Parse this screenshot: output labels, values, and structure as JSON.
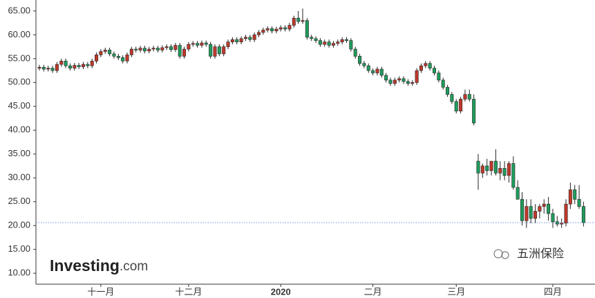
{
  "chart_data": {
    "type": "candlestick",
    "categories": [
      null,
      null,
      null,
      null,
      null,
      null,
      null,
      null,
      null,
      null,
      null,
      null,
      null,
      null,
      "十一月",
      null,
      null,
      null,
      null,
      null,
      null,
      null,
      null,
      null,
      null,
      null,
      null,
      null,
      null,
      null,
      null,
      null,
      null,
      null,
      "十二月",
      null,
      null,
      null,
      null,
      null,
      null,
      null,
      null,
      null,
      null,
      null,
      null,
      null,
      null,
      null,
      null,
      null,
      null,
      null,
      null,
      "2020",
      null,
      null,
      null,
      null,
      null,
      null,
      null,
      null,
      null,
      null,
      null,
      null,
      null,
      null,
      null,
      null,
      null,
      null,
      null,
      null,
      "二月",
      null,
      null,
      null,
      null,
      null,
      null,
      null,
      null,
      null,
      null,
      null,
      null,
      null,
      null,
      null,
      null,
      null,
      null,
      "三月",
      null,
      null,
      null,
      null,
      null,
      null,
      null,
      null,
      null,
      null,
      null,
      null,
      null,
      null,
      null,
      null,
      null,
      null,
      null,
      null,
      null,
      "四月",
      null,
      null,
      null,
      null,
      null,
      null,
      null
    ],
    "open": [
      53.0,
      53.2,
      52.8,
      53.0,
      52.5,
      53.8,
      54.5,
      53.5,
      53.0,
      53.6,
      53.3,
      53.8,
      53.5,
      54.5,
      55.8,
      56.5,
      56.8,
      56.0,
      55.5,
      55.2,
      54.5,
      55.8,
      57.0,
      56.8,
      57.2,
      56.6,
      57.0,
      57.2,
      56.8,
      57.3,
      57.5,
      56.9,
      57.8,
      55.5,
      57.0,
      58.0,
      58.2,
      57.8,
      58.3,
      58.0,
      55.5,
      57.5,
      56.0,
      57.5,
      58.5,
      59.0,
      58.5,
      59.2,
      59.5,
      59.0,
      60.0,
      60.5,
      61.0,
      61.3,
      60.8,
      61.2,
      61.5,
      61.2,
      62.0,
      63.5,
      62.8,
      63.0,
      59.5,
      59.2,
      58.8,
      58.0,
      58.5,
      57.8,
      58.2,
      58.5,
      59.0,
      58.8,
      57.0,
      55.5,
      54.0,
      53.5,
      52.5,
      52.0,
      52.8,
      51.5,
      50.5,
      49.8,
      50.5,
      50.8,
      50.2,
      49.8,
      50.0,
      52.5,
      53.5,
      54.0,
      53.0,
      52.0,
      50.5,
      49.0,
      47.5,
      46.0,
      44.0,
      46.5,
      47.5,
      46.5,
      33.5,
      31.0,
      32.5,
      31.5,
      33.5,
      31.0,
      32.0,
      30.5,
      33.0,
      28.0,
      25.5,
      21.0,
      24.0,
      21.5,
      23.0,
      24.0,
      24.5,
      22.5,
      20.8,
      20.3,
      20.5,
      24.5,
      27.5,
      25.5,
      24.0
    ],
    "high": [
      53.7,
      53.7,
      53.5,
      53.5,
      54.3,
      55.0,
      55.0,
      54.0,
      54.1,
      54.1,
      54.3,
      54.3,
      55.0,
      56.3,
      57.0,
      57.3,
      57.3,
      56.5,
      56.0,
      55.7,
      56.3,
      57.5,
      57.5,
      57.7,
      57.7,
      57.5,
      57.7,
      57.7,
      57.8,
      58.0,
      58.0,
      58.3,
      58.3,
      57.5,
      58.5,
      58.7,
      58.7,
      58.8,
      58.8,
      58.5,
      58.0,
      58.0,
      58.0,
      59.0,
      59.5,
      59.5,
      59.7,
      60.0,
      60.0,
      60.5,
      61.0,
      61.5,
      61.8,
      61.8,
      61.7,
      62.0,
      62.0,
      62.5,
      64.0,
      65.0,
      65.5,
      63.5,
      60.0,
      59.7,
      59.3,
      59.0,
      59.0,
      58.7,
      59.0,
      59.5,
      59.5,
      59.3,
      57.5,
      56.0,
      54.5,
      54.0,
      53.0,
      53.3,
      53.3,
      52.0,
      51.0,
      51.0,
      51.3,
      51.3,
      50.7,
      50.5,
      53.0,
      54.0,
      54.5,
      54.5,
      53.5,
      52.5,
      51.0,
      49.5,
      48.0,
      46.5,
      47.0,
      48.5,
      48.5,
      47.5,
      35.0,
      33.0,
      34.0,
      33.5,
      36.0,
      33.5,
      33.5,
      33.5,
      34.5,
      29.5,
      27.0,
      25.5,
      25.5,
      24.5,
      24.5,
      25.5,
      26.0,
      23.5,
      22.0,
      21.5,
      25.5,
      29.0,
      28.5,
      28.5,
      25.0
    ],
    "low": [
      52.5,
      52.3,
      52.3,
      52.0,
      52.0,
      53.3,
      53.0,
      52.5,
      52.5,
      52.8,
      52.8,
      53.0,
      53.0,
      54.0,
      55.3,
      56.0,
      55.5,
      55.0,
      54.7,
      54.0,
      54.0,
      55.3,
      56.3,
      56.3,
      56.1,
      56.1,
      56.5,
      56.3,
      56.3,
      56.8,
      56.4,
      56.4,
      55.0,
      55.0,
      56.5,
      57.5,
      57.3,
      57.3,
      57.5,
      55.0,
      55.0,
      55.5,
      55.5,
      57.0,
      58.0,
      58.0,
      58.0,
      58.7,
      58.5,
      58.5,
      59.5,
      60.0,
      60.5,
      60.3,
      60.3,
      60.7,
      60.7,
      60.7,
      61.5,
      62.3,
      62.3,
      59.0,
      58.7,
      58.3,
      57.5,
      57.5,
      57.3,
      57.3,
      57.7,
      58.0,
      58.3,
      56.5,
      55.0,
      53.5,
      53.0,
      52.0,
      51.5,
      51.5,
      51.0,
      50.0,
      49.3,
      49.3,
      50.0,
      49.7,
      49.3,
      49.3,
      49.5,
      52.0,
      53.0,
      52.5,
      51.5,
      50.0,
      48.5,
      47.0,
      45.5,
      43.5,
      43.5,
      46.0,
      46.0,
      41.0,
      27.5,
      30.0,
      30.5,
      30.5,
      30.5,
      29.5,
      29.5,
      29.0,
      27.5,
      25.5,
      20.0,
      19.5,
      20.5,
      20.5,
      21.5,
      22.5,
      21.0,
      19.5,
      19.8,
      19.5,
      19.8,
      23.5,
      24.5,
      23.5,
      19.8
    ],
    "close": [
      53.2,
      52.8,
      53.0,
      52.5,
      53.8,
      54.5,
      53.5,
      53.0,
      53.6,
      53.3,
      53.8,
      53.5,
      54.5,
      55.8,
      56.5,
      56.8,
      56.0,
      55.5,
      55.2,
      54.5,
      55.8,
      57.0,
      56.8,
      57.2,
      56.6,
      57.0,
      57.2,
      56.8,
      57.3,
      57.5,
      56.9,
      57.8,
      55.5,
      57.0,
      58.0,
      58.2,
      57.8,
      58.3,
      58.0,
      55.5,
      57.5,
      56.0,
      57.5,
      58.5,
      59.0,
      58.5,
      59.2,
      59.5,
      59.0,
      60.0,
      60.5,
      61.0,
      61.3,
      60.8,
      61.2,
      61.5,
      61.2,
      62.0,
      63.5,
      62.8,
      63.0,
      59.5,
      59.2,
      58.8,
      58.0,
      58.5,
      57.8,
      58.2,
      58.5,
      59.0,
      58.8,
      57.0,
      55.5,
      54.0,
      53.5,
      52.5,
      52.0,
      52.8,
      51.5,
      50.5,
      49.8,
      50.5,
      50.8,
      50.2,
      49.8,
      50.0,
      52.5,
      53.5,
      54.0,
      53.0,
      52.0,
      50.5,
      49.0,
      47.5,
      46.0,
      44.0,
      46.5,
      47.5,
      46.5,
      41.5,
      31.0,
      32.5,
      31.5,
      33.5,
      31.0,
      32.0,
      30.5,
      33.0,
      28.0,
      25.5,
      21.0,
      24.0,
      21.5,
      23.0,
      24.0,
      24.5,
      22.5,
      20.8,
      20.3,
      20.5,
      24.5,
      27.5,
      25.5,
      24.0,
      20.6
    ],
    "up_color": "#c0392b",
    "down_color": "#1f9d5c",
    "ylim": [
      7.7,
      67.3
    ],
    "yticks": [
      {
        "value": 10,
        "label": "10.00"
      },
      {
        "value": 15,
        "label": "15.00"
      },
      {
        "value": 20,
        "label": "20.00"
      },
      {
        "value": 25,
        "label": "25.00"
      },
      {
        "value": 30,
        "label": "30.00"
      },
      {
        "value": 35,
        "label": "35.00"
      },
      {
        "value": 40,
        "label": "40.00"
      },
      {
        "value": 45,
        "label": "45.00"
      },
      {
        "value": 50,
        "label": "50.00"
      },
      {
        "value": 55,
        "label": "55.00"
      },
      {
        "value": 60,
        "label": "60.00"
      },
      {
        "value": 65,
        "label": "65.00"
      }
    ],
    "bold_category": "2020",
    "logo": "Investing",
    "logo_suffix": ".com",
    "wechat_label": "五洲保险"
  }
}
